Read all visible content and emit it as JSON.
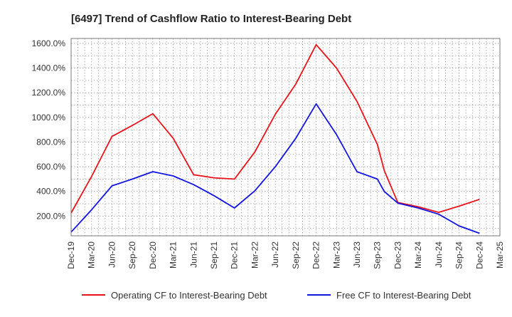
{
  "chart_data": {
    "type": "line",
    "title": "[6497]  Trend of Cashflow Ratio to Interest-Bearing Debt",
    "xlabel": "",
    "ylabel": "",
    "x_ticks": [
      "Dec-19",
      "Mar-20",
      "Jun-20",
      "Sep-20",
      "Dec-20",
      "Mar-21",
      "Jun-21",
      "Sep-21",
      "Dec-21",
      "Mar-22",
      "Jun-22",
      "Sep-22",
      "Dec-22",
      "Mar-23",
      "Jun-23",
      "Sep-23",
      "Dec-23",
      "Mar-24",
      "Jun-24",
      "Sep-24",
      "Dec-24",
      "Mar-25"
    ],
    "y_ticks": [
      "200.0%",
      "400.0%",
      "600.0%",
      "800.0%",
      "1000.0%",
      "1200.0%",
      "1400.0%",
      "1600.0%"
    ],
    "ylim": [
      40,
      1640
    ],
    "grid": true,
    "legend_position": "bottom",
    "series": [
      {
        "name": "Operating CF to Interest-Bearing Debt",
        "color": "#e8141c",
        "x": [
          "Dec-19",
          "Mar-20",
          "Jun-20",
          "Sep-20",
          "Dec-20",
          "Mar-21",
          "Jun-21",
          "Sep-21",
          "Dec-21",
          "Mar-22",
          "Jun-22",
          "Sep-22",
          "Dec-22",
          "Mar-23",
          "Jun-23",
          "Sep-23",
          "Oct-23",
          "Dec-23",
          "Mar-24",
          "Jun-24",
          "Sep-24",
          "Dec-24"
        ],
        "values": [
          225,
          520,
          845,
          935,
          1030,
          830,
          535,
          510,
          500,
          720,
          1025,
          1270,
          1590,
          1400,
          1130,
          780,
          570,
          310,
          275,
          230,
          280,
          335
        ]
      },
      {
        "name": "Free CF to Interest-Bearing Debt",
        "color": "#1414e0",
        "x": [
          "Dec-19",
          "Mar-20",
          "Jun-20",
          "Sep-20",
          "Dec-20",
          "Mar-21",
          "Jun-21",
          "Sep-21",
          "Dec-21",
          "Mar-22",
          "Jun-22",
          "Sep-22",
          "Dec-22",
          "Mar-23",
          "Jun-23",
          "Sep-23",
          "Oct-23",
          "Dec-23",
          "Mar-24",
          "Jun-24",
          "Sep-24",
          "Dec-24"
        ],
        "values": [
          70,
          250,
          445,
          500,
          560,
          525,
          455,
          365,
          265,
          405,
          600,
          830,
          1110,
          860,
          560,
          500,
          400,
          305,
          265,
          215,
          120,
          60
        ]
      }
    ]
  }
}
